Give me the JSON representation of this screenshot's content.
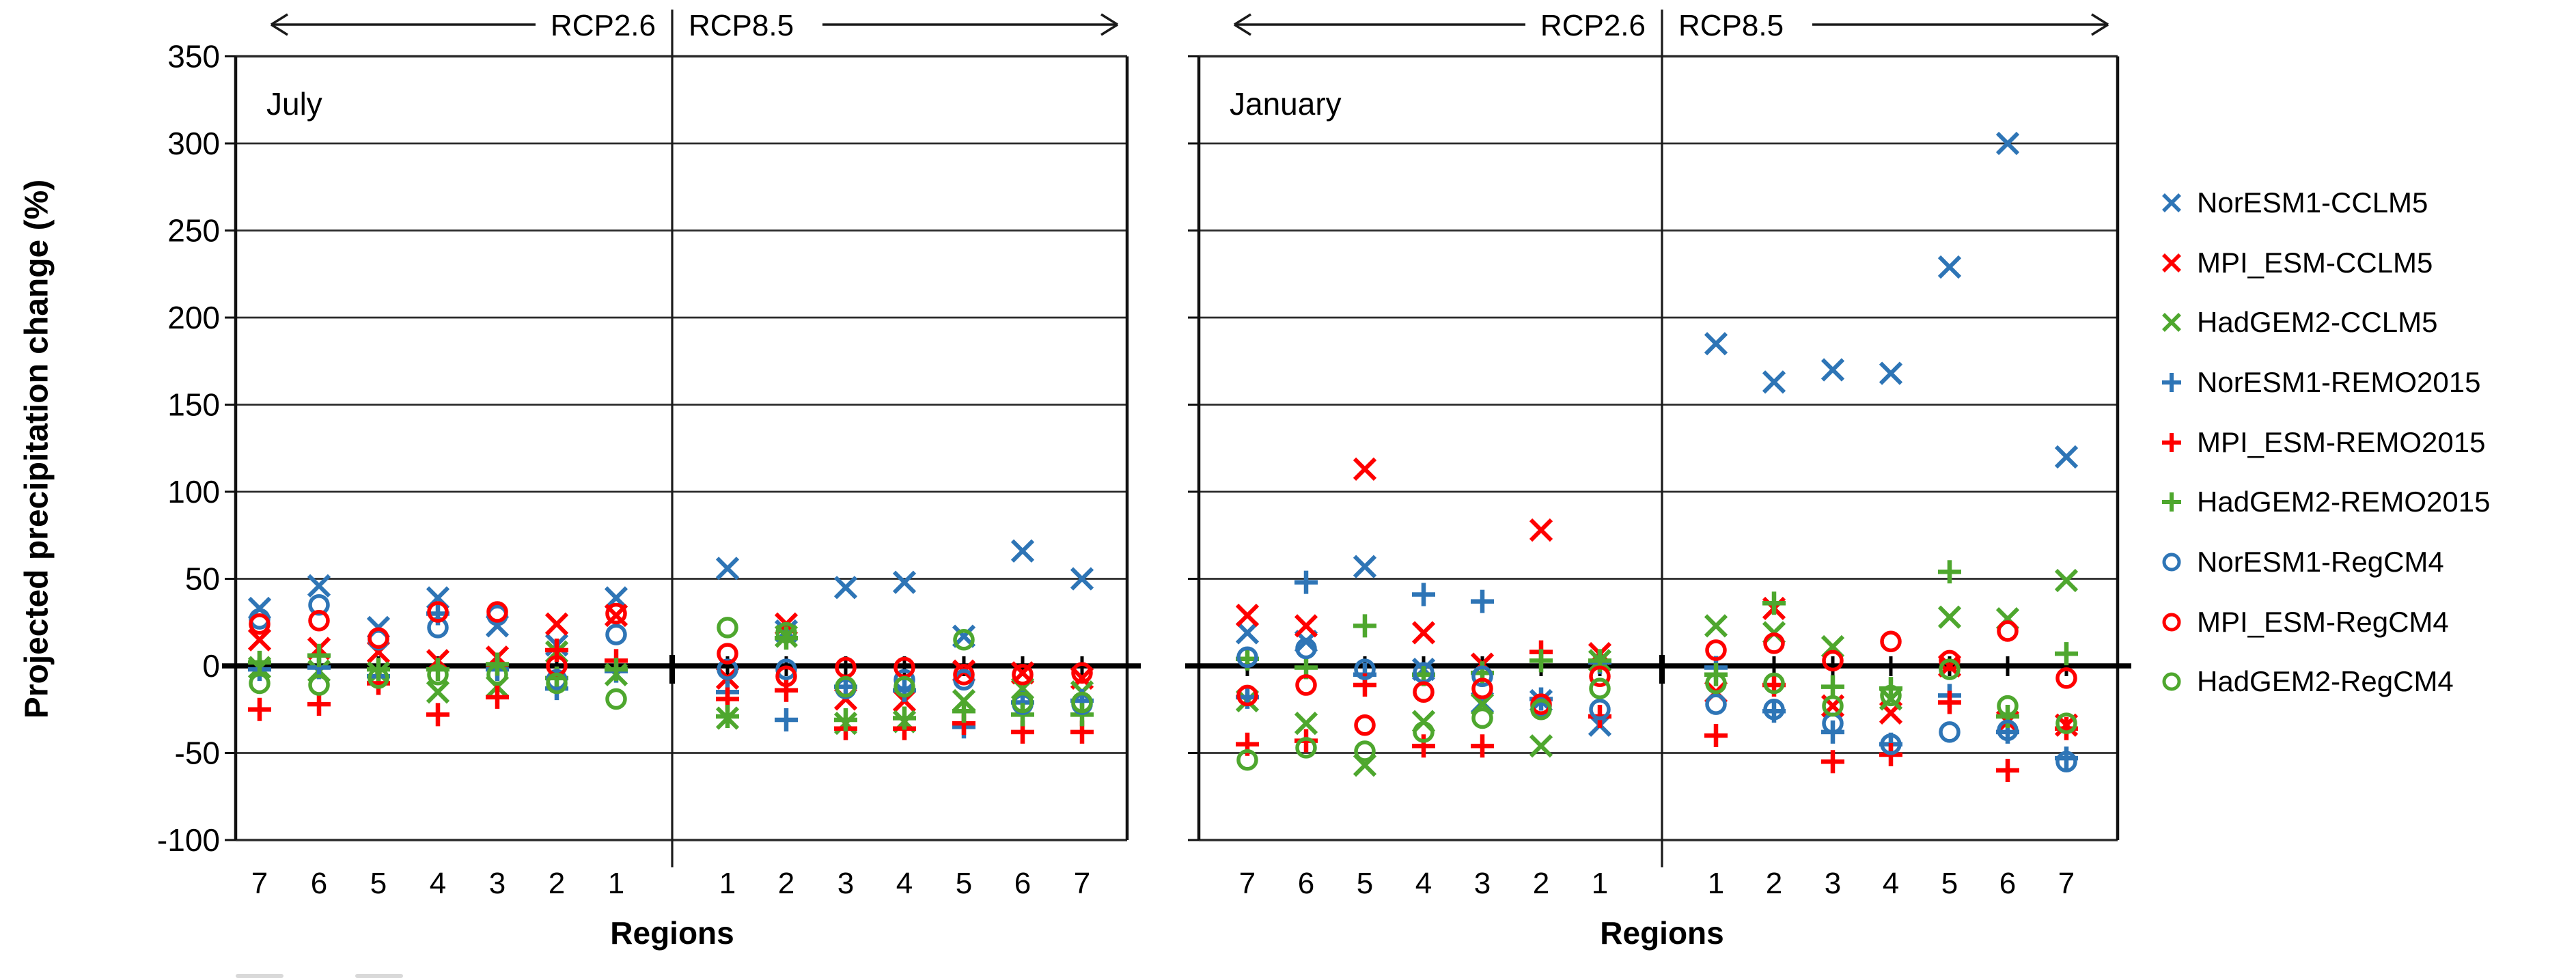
{
  "page": {
    "background": "#ffffff"
  },
  "chart_data": {
    "type": "scatter",
    "ylabel": "Projected precipitation change (%)",
    "xlabel": "Regions",
    "ylim": [
      -100,
      350
    ],
    "yticks": [
      350,
      300,
      250,
      200,
      150,
      100,
      50,
      0,
      -50,
      -100
    ],
    "grid": true,
    "scenario_left_label": "RCP2.6",
    "scenario_right_label": "RCP8.5",
    "x_categories": [
      "7",
      "6",
      "5",
      "4",
      "3",
      "2",
      "1",
      "1",
      "2",
      "3",
      "4",
      "5",
      "6",
      "7"
    ],
    "colors": {
      "blue": "#2e75b6",
      "red": "#fe0000",
      "green": "#4ea72e"
    },
    "legend": [
      {
        "label": "NorESM1-CCLM5",
        "color": "blue",
        "symbol": "x"
      },
      {
        "label": "MPI_ESM-CCLM5",
        "color": "red",
        "symbol": "x"
      },
      {
        "label": "HadGEM2-CCLM5",
        "color": "green",
        "symbol": "x"
      },
      {
        "label": "NorESM1-REMO2015",
        "color": "blue",
        "symbol": "plus"
      },
      {
        "label": "MPI_ESM-REMO2015",
        "color": "red",
        "symbol": "plus"
      },
      {
        "label": "HadGEM2-REMO2015",
        "color": "green",
        "symbol": "plus"
      },
      {
        "label": "NorESM1-RegCM4",
        "color": "blue",
        "symbol": "o"
      },
      {
        "label": "MPI_ESM-RegCM4",
        "color": "red",
        "symbol": "o"
      },
      {
        "label": "HadGEM2-RegCM4",
        "color": "green",
        "symbol": "o"
      }
    ],
    "panels": [
      {
        "label": "July",
        "series": [
          {
            "name": "NorESM1-CCLM5",
            "color": "blue",
            "symbol": "x",
            "values": [
              33,
              46,
              22,
              39,
              23,
              12,
              39,
              56,
              20,
              45,
              48,
              17,
              66,
              50
            ]
          },
          {
            "name": "MPI_ESM-CCLM5",
            "color": "red",
            "symbol": "x",
            "values": [
              15,
              10,
              8,
              3,
              5,
              24,
              29,
              -7,
              24,
              -19,
              -20,
              -3,
              -4,
              -7
            ]
          },
          {
            "name": "HadGEM2-CCLM5",
            "color": "green",
            "symbol": "x",
            "values": [
              -1,
              -3,
              -4,
              -15,
              -12,
              8,
              -5,
              -30,
              17,
              -33,
              -32,
              -20,
              -13,
              -15
            ]
          },
          {
            "name": "NorESM1-REMO2015",
            "color": "blue",
            "symbol": "plus",
            "values": [
              -2,
              -1,
              -6,
              30,
              -2,
              -13,
              -3,
              -15,
              -31,
              -12,
              -14,
              -35,
              -21,
              -20
            ]
          },
          {
            "name": "MPI_ESM-REMO2015",
            "color": "red",
            "symbol": "plus",
            "values": [
              -25,
              -22,
              -10,
              -28,
              -18,
              9,
              3,
              -19,
              -14,
              -36,
              -36,
              -33,
              -38,
              -38
            ]
          },
          {
            "name": "HadGEM2-REMO2015",
            "color": "green",
            "symbol": "plus",
            "values": [
              2,
              6,
              -2,
              -2,
              1,
              -7,
              -2,
              -29,
              16,
              -31,
              -30,
              -26,
              -28,
              -28
            ]
          },
          {
            "name": "NorESM1-RegCM4",
            "color": "blue",
            "symbol": "o",
            "values": [
              27,
              35,
              15,
              22,
              29,
              -8,
              18,
              -2,
              -2,
              -13,
              -8,
              -8,
              -22,
              -22
            ]
          },
          {
            "name": "MPI_ESM-RegCM4",
            "color": "red",
            "symbol": "o",
            "values": [
              24,
              26,
              16,
              31,
              31,
              0,
              30,
              7,
              -6,
              -1,
              -1,
              -5,
              -5,
              -4
            ]
          },
          {
            "name": "HadGEM2-RegCM4",
            "color": "green",
            "symbol": "o",
            "values": [
              -10,
              -11,
              -7,
              -5,
              -5,
              -10,
              -19,
              22,
              19,
              -12,
              -12,
              15,
              -21,
              -21
            ]
          }
        ]
      },
      {
        "label": "January",
        "series": [
          {
            "name": "NorESM1-CCLM5",
            "color": "blue",
            "symbol": "x",
            "values": [
              19,
              14,
              57,
              -2,
              -21,
              -20,
              -34,
              185,
              163,
              170,
              168,
              229,
              300,
              120
            ]
          },
          {
            "name": "MPI_ESM-CCLM5",
            "color": "red",
            "symbol": "x",
            "values": [
              29,
              23,
              113,
              19,
              1,
              78,
              7,
              -15,
              33,
              -23,
              -27,
              0,
              -32,
              -34
            ]
          },
          {
            "name": "HadGEM2-CCLM5",
            "color": "green",
            "symbol": "x",
            "values": [
              -20,
              -33,
              -57,
              -32,
              -22,
              -46,
              3,
              23,
              19,
              11,
              -19,
              28,
              27,
              49
            ]
          },
          {
            "name": "NorESM1-REMO2015",
            "color": "blue",
            "symbol": "plus",
            "values": [
              -18,
              48,
              -5,
              41,
              37,
              -19,
              2,
              -1,
              -26,
              -38,
              -45,
              -17,
              -38,
              -53
            ]
          },
          {
            "name": "MPI_ESM-REMO2015",
            "color": "red",
            "symbol": "plus",
            "values": [
              -45,
              -43,
              -11,
              -46,
              -46,
              8,
              -29,
              -40,
              -11,
              -55,
              -51,
              -21,
              -60,
              -36
            ]
          },
          {
            "name": "HadGEM2-REMO2015",
            "color": "green",
            "symbol": "plus",
            "values": [
              4,
              -1,
              23,
              -5,
              -4,
              3,
              3,
              -5,
              36,
              -12,
              -13,
              54,
              -29,
              7
            ]
          },
          {
            "name": "NorESM1-RegCM4",
            "color": "blue",
            "symbol": "o",
            "values": [
              5,
              10,
              -2,
              -4,
              -6,
              -23,
              -25,
              -22,
              -25,
              -33,
              -45,
              -38,
              -37,
              -55
            ]
          },
          {
            "name": "MPI_ESM-RegCM4",
            "color": "red",
            "symbol": "o",
            "values": [
              -17,
              -11,
              -34,
              -15,
              -13,
              -22,
              -6,
              9,
              13,
              3,
              14,
              3,
              20,
              -7
            ]
          },
          {
            "name": "HadGEM2-RegCM4",
            "color": "green",
            "symbol": "o",
            "values": [
              -54,
              -47,
              -49,
              -38,
              -30,
              -25,
              -13,
              -10,
              -10,
              -23,
              -17,
              -2,
              -23,
              -33
            ]
          }
        ]
      }
    ]
  }
}
